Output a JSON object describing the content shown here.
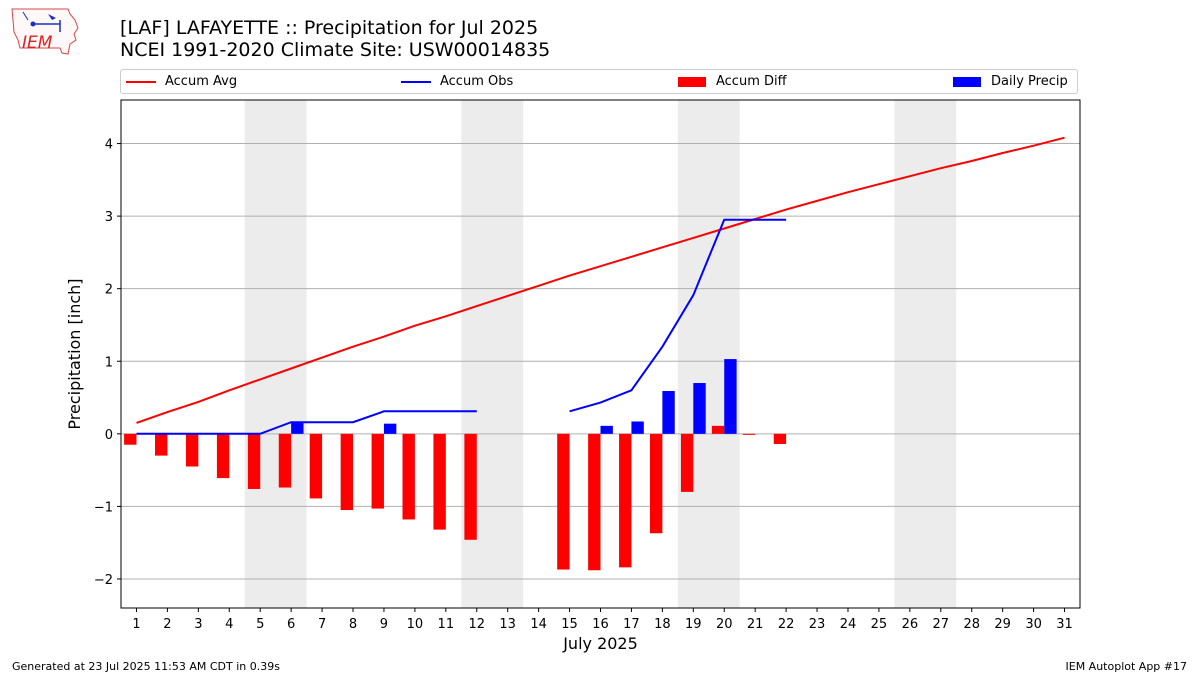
{
  "header": {
    "title_line1": "[LAF] LAFAYETTE :: Precipitation for Jul 2025",
    "title_line2": "NCEI 1991-2020 Climate Site: USW00014835"
  },
  "logo": {
    "text": "IEM",
    "icon": "iowa-state-outline-weather-station-icon"
  },
  "legend": {
    "accum_avg": "Accum Avg",
    "accum_obs": "Accum Obs",
    "accum_diff": "Accum Diff",
    "daily_precip": "Daily Precip"
  },
  "colors": {
    "avg": "#ff0000",
    "obs": "#0000ff",
    "diff": "#ff0000",
    "daily": "#0000ff",
    "weekend": "#ececec",
    "grid": "#b0b0b0"
  },
  "footer": {
    "left": "Generated at 23 Jul 2025 11:53 AM CDT in 0.39s",
    "right": "IEM Autoplot App #17"
  },
  "chart_data": {
    "type": "bar",
    "xlabel": "July 2025",
    "ylabel": "Precipitation [inch]",
    "ylim": [
      -2.4,
      4.6
    ],
    "xlim": [
      0.5,
      31.5
    ],
    "yticks": [
      -2,
      -1,
      0,
      1,
      2,
      3,
      4
    ],
    "grid": "horizontal",
    "legend_placement": "top",
    "weekend_days": [
      [
        5,
        6
      ],
      [
        12,
        13
      ],
      [
        19,
        20
      ],
      [
        26,
        27
      ]
    ],
    "days": [
      1,
      2,
      3,
      4,
      5,
      6,
      7,
      8,
      9,
      10,
      11,
      12,
      13,
      14,
      15,
      16,
      17,
      18,
      19,
      20,
      21,
      22,
      23,
      24,
      25,
      26,
      27,
      28,
      29,
      30,
      31
    ],
    "series": [
      {
        "name": "Accum Avg",
        "kind": "line",
        "values": [
          0.15,
          0.3,
          0.44,
          0.6,
          0.75,
          0.9,
          1.05,
          1.2,
          1.34,
          1.49,
          1.62,
          1.76,
          1.9,
          2.04,
          2.18,
          2.31,
          2.44,
          2.57,
          2.7,
          2.83,
          2.96,
          3.09,
          3.21,
          3.33,
          3.44,
          3.55,
          3.66,
          3.76,
          3.87,
          3.97,
          4.08
        ]
      },
      {
        "name": "Accum Obs",
        "kind": "line",
        "values": [
          0,
          0,
          0,
          0,
          0,
          0.16,
          0.16,
          0.16,
          0.31,
          0.31,
          0.31,
          0.31,
          null,
          null,
          0.31,
          0.43,
          0.6,
          1.2,
          1.91,
          2.95,
          2.95,
          2.95,
          null,
          null,
          null,
          null,
          null,
          null,
          null,
          null,
          null
        ]
      },
      {
        "name": "Accum Diff",
        "kind": "bar",
        "values": [
          -0.15,
          -0.3,
          -0.45,
          -0.61,
          -0.76,
          -0.74,
          -0.89,
          -1.05,
          -1.03,
          -1.18,
          -1.32,
          -1.46,
          null,
          null,
          -1.87,
          -1.88,
          -1.84,
          -1.37,
          -0.8,
          0.11,
          -0.01,
          -0.14,
          null,
          null,
          null,
          null,
          null,
          null,
          null,
          null,
          null
        ]
      },
      {
        "name": "Daily Precip",
        "kind": "bar",
        "values": [
          0,
          0,
          0,
          0,
          0,
          0.16,
          0,
          0,
          0.14,
          0,
          0,
          0,
          null,
          null,
          0,
          0.11,
          0.17,
          0.59,
          0.7,
          1.03,
          0,
          0,
          null,
          null,
          null,
          null,
          null,
          null,
          null,
          null,
          null
        ]
      }
    ]
  }
}
